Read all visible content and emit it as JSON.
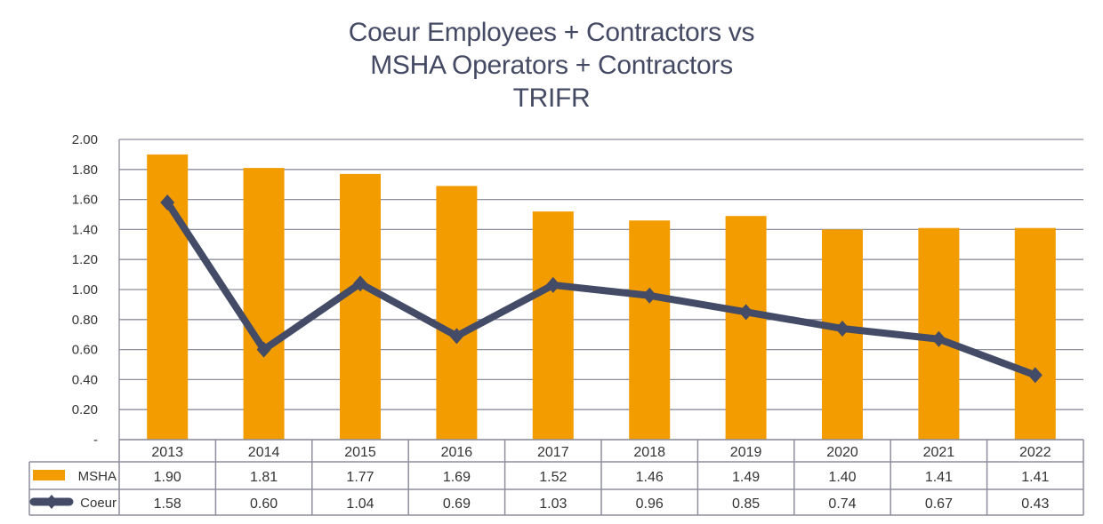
{
  "chart_data": {
    "type": "bar+line",
    "title_lines": [
      "Coeur Employees + Contractors vs",
      "MSHA Operators + Contractors",
      "TRIFR"
    ],
    "categories": [
      "2013",
      "2014",
      "2015",
      "2016",
      "2017",
      "2018",
      "2019",
      "2020",
      "2021",
      "2022"
    ],
    "series": [
      {
        "name": "MSHA",
        "kind": "bar",
        "color": "#F29C00",
        "values": [
          1.9,
          1.81,
          1.77,
          1.69,
          1.52,
          1.46,
          1.49,
          1.4,
          1.41,
          1.41
        ],
        "labels": [
          "1.90",
          "1.81",
          "1.77",
          "1.69",
          "1.52",
          "1.46",
          "1.49",
          "1.40",
          "1.41",
          "1.41"
        ]
      },
      {
        "name": "Coeur",
        "kind": "line",
        "color": "#434B67",
        "values": [
          1.58,
          0.6,
          1.04,
          0.69,
          1.03,
          0.96,
          0.85,
          0.74,
          0.67,
          0.43
        ],
        "labels": [
          "1.58",
          "0.60",
          "1.04",
          "0.69",
          "1.03",
          "0.96",
          "0.85",
          "0.74",
          "0.67",
          "0.43"
        ]
      }
    ],
    "ylim": [
      0,
      2.0
    ],
    "yticks": [
      "-",
      "0.20",
      "0.40",
      "0.60",
      "0.80",
      "1.00",
      "1.20",
      "1.40",
      "1.60",
      "1.80",
      "2.00"
    ],
    "grid": true,
    "legend": "data-table-below"
  }
}
